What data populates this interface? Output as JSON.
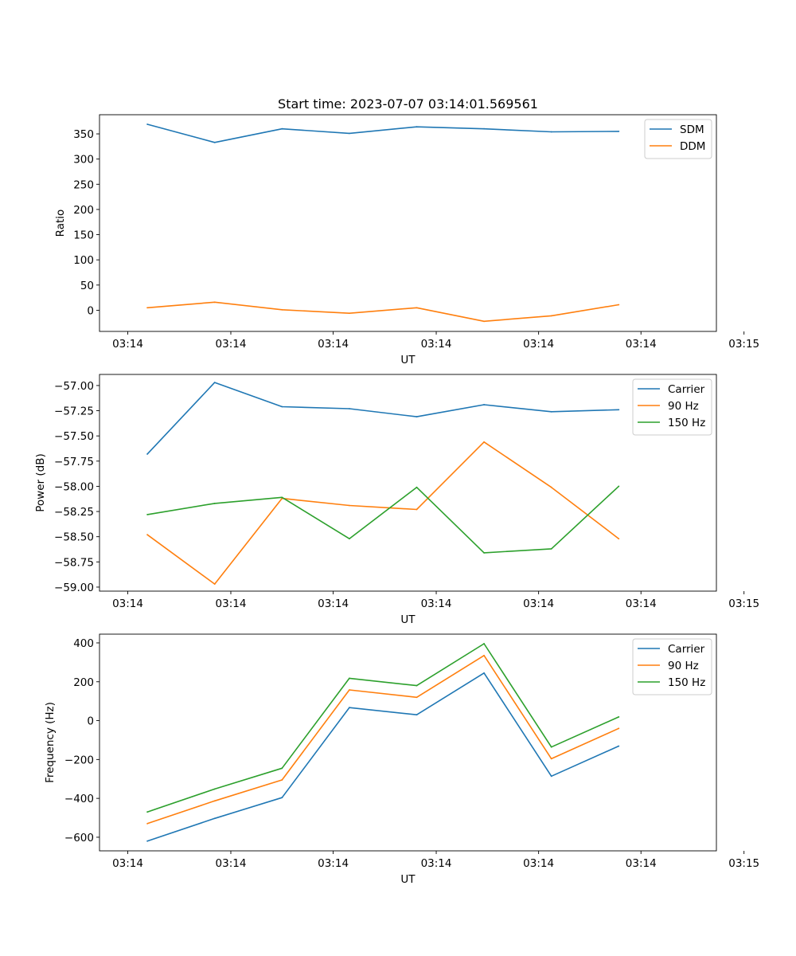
{
  "figure_title": "Start time: 2023-07-07 03:14:01.569561",
  "colors": {
    "blue": "#1f77b4",
    "orange": "#ff7f0e",
    "green": "#2ca02c"
  },
  "chart_data": [
    {
      "type": "line",
      "title": "Start time: 2023-07-07 03:14:01.569561",
      "xlabel": "UT",
      "ylabel": "Ratio",
      "x": [
        1,
        2,
        3,
        4,
        5,
        6,
        7,
        8
      ],
      "xlim": [
        0.29,
        9.45
      ],
      "x_ticks": [
        0.71,
        2.24,
        3.76,
        5.29,
        6.81,
        8.33,
        9.86
      ],
      "x_tick_labels": [
        "03:14",
        "03:14",
        "03:14",
        "03:14",
        "03:14",
        "03:14",
        "03:15"
      ],
      "ylim": [
        -42,
        388
      ],
      "y_ticks": [
        0,
        50,
        100,
        150,
        200,
        250,
        300,
        350
      ],
      "y_tick_labels": [
        "0",
        "50",
        "100",
        "150",
        "200",
        "250",
        "300",
        "350"
      ],
      "legend_position": "top-right",
      "series": [
        {
          "name": "SDM",
          "color": "#1f77b4",
          "values": [
            369,
            333,
            360,
            351,
            364,
            360,
            354,
            355
          ]
        },
        {
          "name": "DDM",
          "color": "#ff7f0e",
          "values": [
            5,
            16,
            1,
            -6,
            5,
            -22,
            -11,
            11
          ]
        }
      ]
    },
    {
      "type": "line",
      "title": "",
      "xlabel": "UT",
      "ylabel": "Power (dB)",
      "x": [
        1,
        2,
        3,
        4,
        5,
        6,
        7,
        8
      ],
      "xlim": [
        0.29,
        9.45
      ],
      "x_ticks": [
        0.71,
        2.24,
        3.76,
        5.29,
        6.81,
        8.33,
        9.86
      ],
      "x_tick_labels": [
        "03:14",
        "03:14",
        "03:14",
        "03:14",
        "03:14",
        "03:14",
        "03:15"
      ],
      "ylim": [
        -59.04,
        -56.89
      ],
      "y_ticks": [
        -59.0,
        -58.75,
        -58.5,
        -58.25,
        -58.0,
        -57.75,
        -57.5,
        -57.25,
        -57.0
      ],
      "y_tick_labels": [
        "−59.00",
        "−58.75",
        "−58.50",
        "−58.25",
        "−58.00",
        "−57.75",
        "−57.50",
        "−57.25",
        "−57.00"
      ],
      "legend_position": "top-right",
      "series": [
        {
          "name": "Carrier",
          "color": "#1f77b4",
          "values": [
            -57.68,
            -56.97,
            -57.21,
            -57.23,
            -57.31,
            -57.19,
            -57.26,
            -57.24
          ]
        },
        {
          "name": "90 Hz",
          "color": "#ff7f0e",
          "values": [
            -58.48,
            -58.97,
            -58.12,
            -58.19,
            -58.23,
            -57.56,
            -58.01,
            -58.52
          ]
        },
        {
          "name": "150 Hz",
          "color": "#2ca02c",
          "values": [
            -58.28,
            -58.17,
            -58.11,
            -58.52,
            -58.01,
            -58.66,
            -58.62,
            -58.0
          ]
        }
      ]
    },
    {
      "type": "line",
      "title": "",
      "xlabel": "UT",
      "ylabel": "Frequency (Hz)",
      "x": [
        1,
        2,
        3,
        4,
        5,
        6,
        7,
        8
      ],
      "xlim": [
        0.29,
        9.45
      ],
      "x_ticks": [
        0.71,
        2.24,
        3.76,
        5.29,
        6.81,
        8.33,
        9.86
      ],
      "x_tick_labels": [
        "03:14",
        "03:14",
        "03:14",
        "03:14",
        "03:14",
        "03:14",
        "03:15"
      ],
      "ylim": [
        -670,
        445
      ],
      "y_ticks": [
        -600,
        -400,
        -200,
        0,
        200,
        400
      ],
      "y_tick_labels": [
        "−600",
        "−400",
        "−200",
        "0",
        "200",
        "400"
      ],
      "legend_position": "top-right",
      "series": [
        {
          "name": "Carrier",
          "color": "#1f77b4",
          "values": [
            -620,
            -503,
            -396,
            67,
            30,
            245,
            -286,
            -131
          ]
        },
        {
          "name": "90 Hz",
          "color": "#ff7f0e",
          "values": [
            -530,
            -413,
            -305,
            158,
            120,
            335,
            -196,
            -40
          ]
        },
        {
          "name": "150 Hz",
          "color": "#2ca02c",
          "values": [
            -470,
            -352,
            -245,
            218,
            180,
            396,
            -136,
            19
          ]
        }
      ]
    }
  ]
}
